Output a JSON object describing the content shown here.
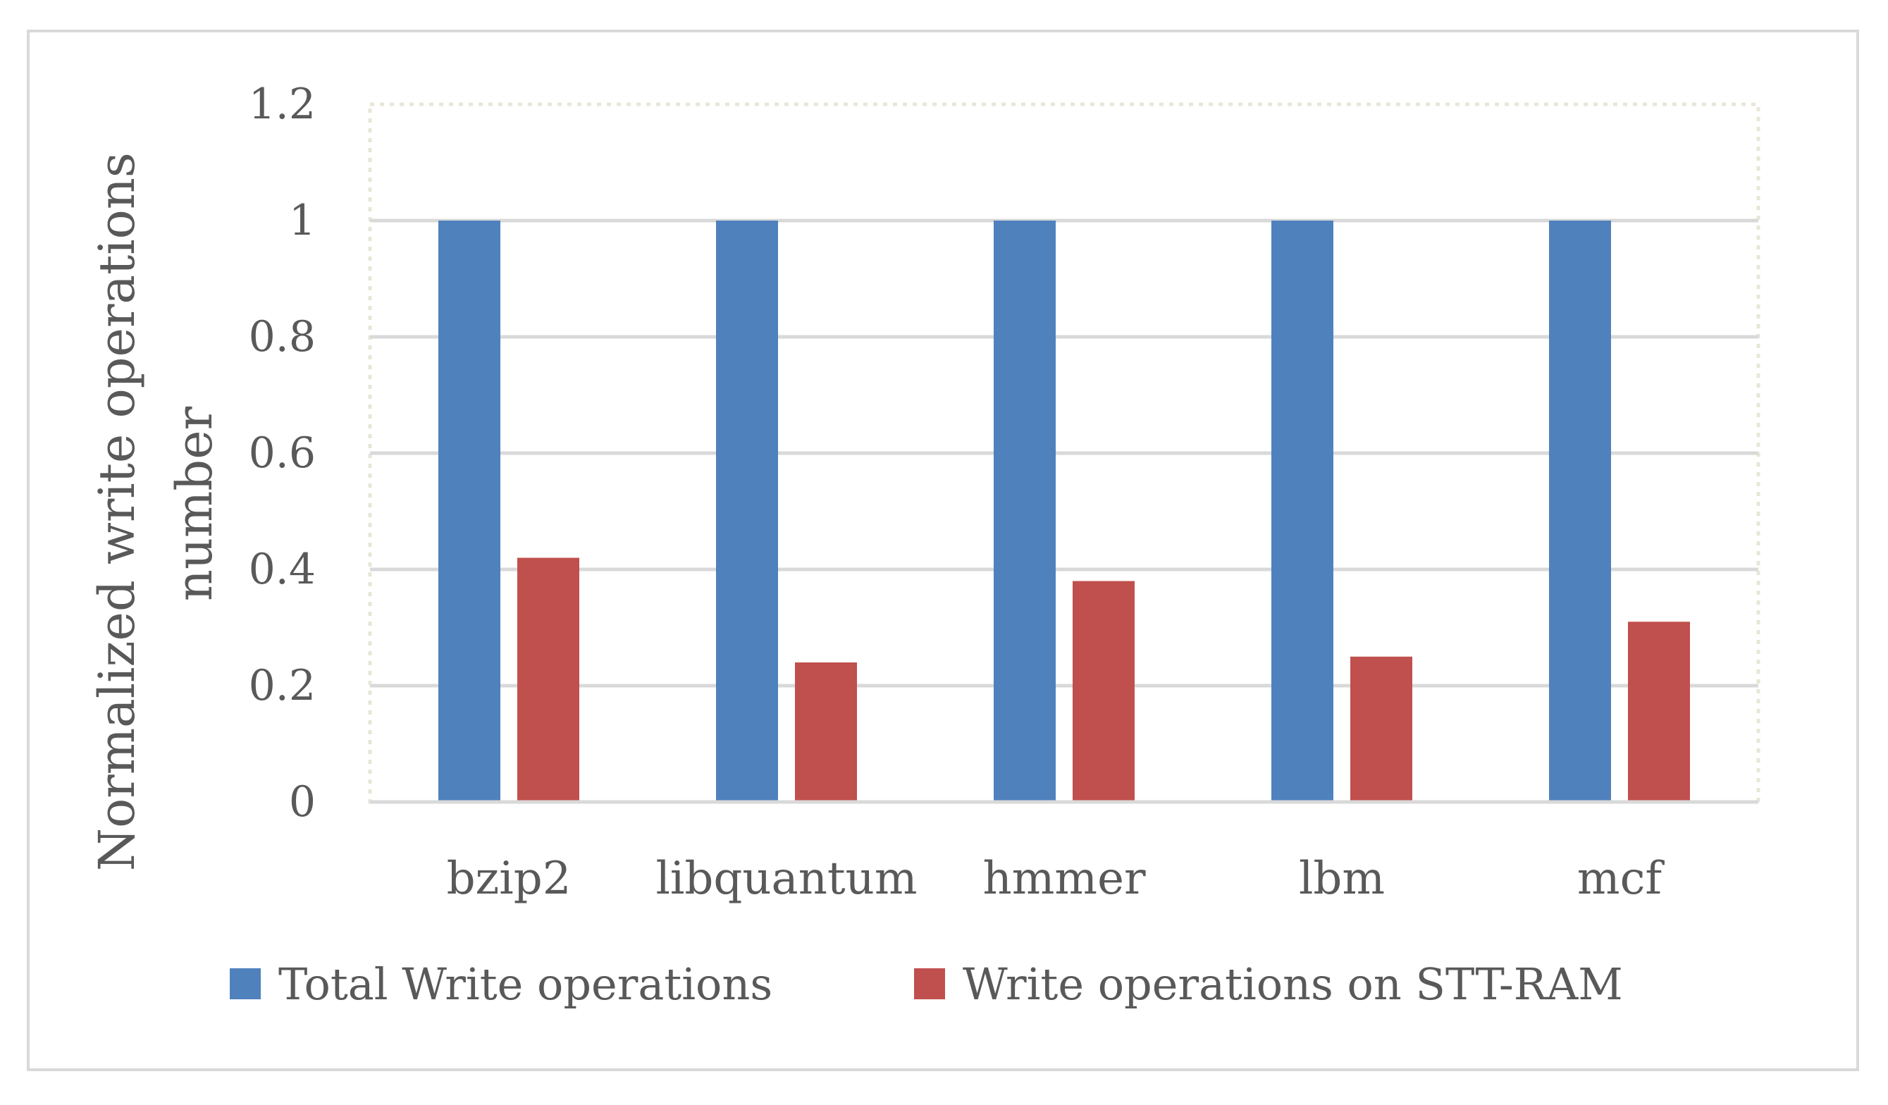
{
  "chart_data": {
    "type": "bar",
    "categories": [
      "bzip2",
      "libquantum",
      "hmmer",
      "lbm",
      "mcf"
    ],
    "series": [
      {
        "name": "Total Write operations",
        "values": [
          1,
          1,
          1,
          1,
          1
        ],
        "color": "#4f81bd"
      },
      {
        "name": "Write operations on STT-RAM",
        "values": [
          0.42,
          0.24,
          0.38,
          0.25,
          0.31
        ],
        "color": "#c0504d"
      }
    ],
    "title": "",
    "xlabel": "",
    "ylabel_lines": [
      "Normalized write operations",
      "number"
    ],
    "ylim": [
      0,
      1.2
    ],
    "yticks": [
      0,
      0.2,
      0.4,
      0.6,
      0.8,
      1,
      1.2
    ],
    "ytick_labels": [
      "0",
      "0.2",
      "0.4",
      "0.6",
      "0.8",
      "1",
      "1.2"
    ],
    "grid": true,
    "gridline_color": "#d9d9d9",
    "legend_position": "bottom"
  }
}
